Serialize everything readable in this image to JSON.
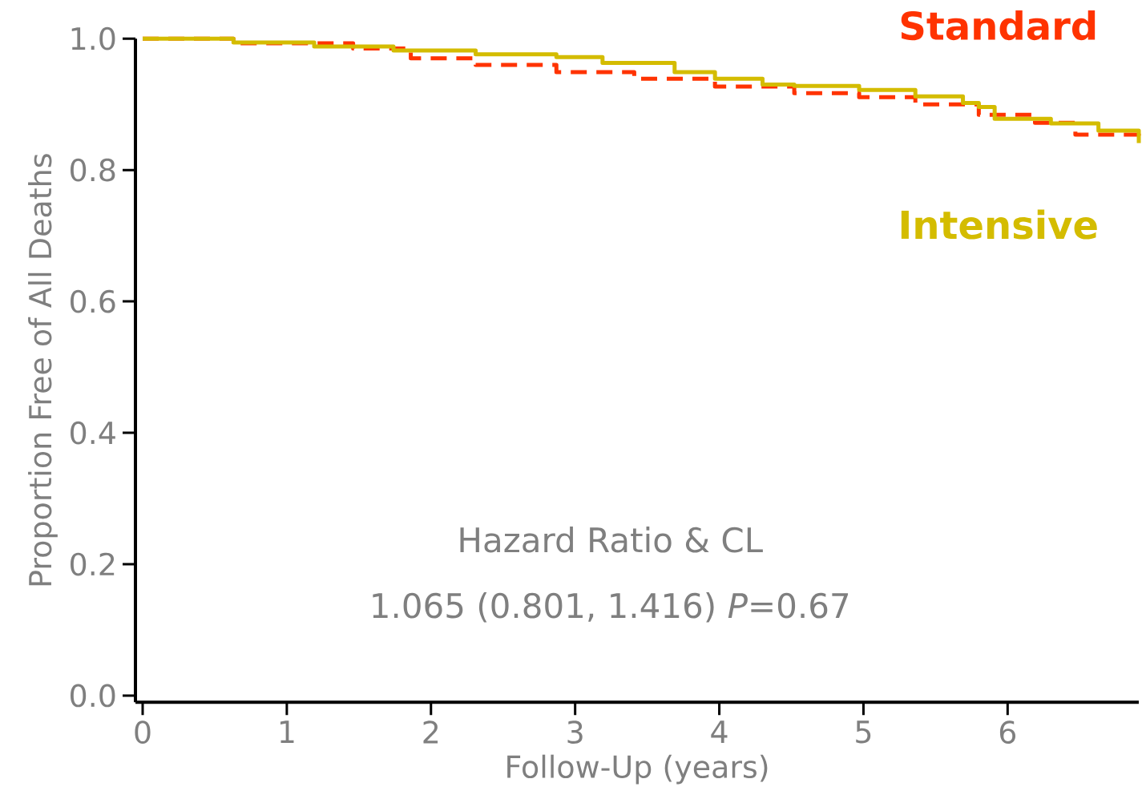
{
  "chart_data": {
    "type": "step",
    "xlabel": "Follow-Up (years)",
    "ylabel": "Proportion Free of All Deaths",
    "annotations": [
      "Hazard Ratio & CL",
      "1.065 (0.801, 1.416)  *P*=0.67"
    ],
    "series": [
      {
        "name": "Standard",
        "color": "#ff3300",
        "line_style": "dashed",
        "x": [
          0,
          0.63,
          1.46,
          1.86,
          2.31,
          2.87,
          3.41,
          3.97,
          4.52,
          4.97,
          5.36,
          5.8,
          6.19,
          6.47,
          6.91
        ],
        "values": [
          1.0,
          0.993,
          0.985,
          0.97,
          0.96,
          0.949,
          0.939,
          0.927,
          0.917,
          0.911,
          0.9,
          0.884,
          0.872,
          0.854,
          0.848
        ]
      },
      {
        "name": "Intensive",
        "color": "#d4bc00",
        "line_style": "solid",
        "x": [
          0,
          0.63,
          1.19,
          1.74,
          2.31,
          2.87,
          3.19,
          3.69,
          3.97,
          4.3,
          4.52,
          4.97,
          5.36,
          5.69,
          5.8,
          5.91,
          6.3,
          6.63,
          6.91
        ],
        "values": [
          1.0,
          0.994,
          0.988,
          0.982,
          0.976,
          0.972,
          0.963,
          0.949,
          0.939,
          0.93,
          0.928,
          0.922,
          0.912,
          0.902,
          0.896,
          0.878,
          0.871,
          0.86,
          0.841
        ]
      }
    ],
    "xlim": [
      -0.05,
      6.91
    ],
    "ylim": [
      -0.01,
      1.0
    ],
    "xticks": [
      0,
      1,
      2,
      3,
      4,
      5,
      6
    ],
    "yticks": [
      {
        "value": 0,
        "label": "0.0"
      },
      {
        "value": 0.2,
        "label": "0.2"
      },
      {
        "value": 0.4,
        "label": "0.4"
      },
      {
        "value": 0.6,
        "label": "0.6"
      },
      {
        "value": 0.8,
        "label": "0.8"
      },
      {
        "value": 1.0,
        "label": "1.0"
      }
    ],
    "grid": false
  }
}
